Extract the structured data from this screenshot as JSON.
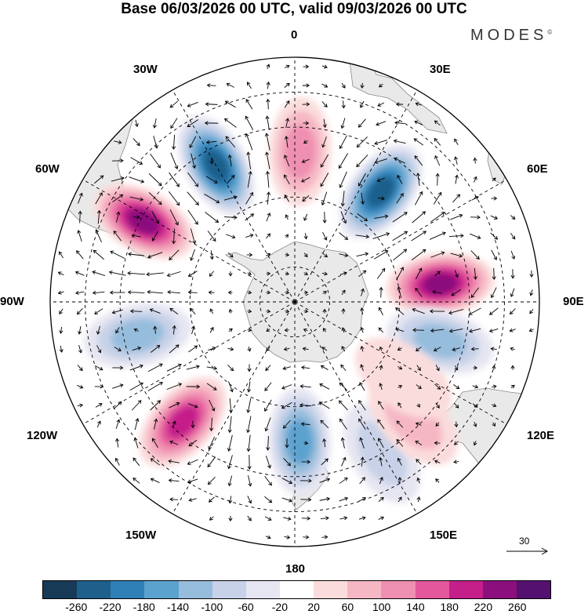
{
  "title": "Base 06/03/2026 00 UTC, valid 09/03/2026 00 UTC",
  "brand": "MODES",
  "brand_mark": "©",
  "longitude_labels": {
    "n0": "0",
    "n30e": "30E",
    "n60e": "60E",
    "n90e": "90E",
    "n120e": "120E",
    "n150e": "150E",
    "n180": "180",
    "n150w": "150W",
    "n120w": "120W",
    "n90w": "90W",
    "n60w": "60W",
    "n30w": "30W"
  },
  "reference_vector": {
    "label": "30"
  },
  "colorbar": {
    "colors": [
      "#173a57",
      "#1f5f8b",
      "#2f80b7",
      "#5ca2cf",
      "#97bddd",
      "#c7d2e8",
      "#e6e6f2",
      "#ffffff",
      "#fbdcdc",
      "#f6b7c5",
      "#ef8fb1",
      "#e4579c",
      "#c51f8a",
      "#8b0f7d",
      "#551170"
    ],
    "ticks": [
      "-260",
      "-220",
      "-180",
      "-140",
      "-100",
      "-60",
      "-20",
      "20",
      "60",
      "100",
      "140",
      "180",
      "220",
      "260"
    ]
  },
  "anomaly_centers": [
    {
      "lon": -30,
      "lat": -45,
      "value": -250
    },
    {
      "lon": 2,
      "lat": -47,
      "value": 130
    },
    {
      "lon": 38,
      "lat": -50,
      "value": -220
    },
    {
      "lon": 83,
      "lat": -48,
      "value": 230
    },
    {
      "lon": 105,
      "lat": -47,
      "value": -110
    },
    {
      "lon": -62,
      "lat": -41,
      "value": 240
    },
    {
      "lon": -102,
      "lat": -44,
      "value": -130
    },
    {
      "lon": -137,
      "lat": -43,
      "value": 180
    },
    {
      "lon": 178,
      "lat": -50,
      "value": -170
    },
    {
      "lon": 150,
      "lat": -40,
      "value": -60
    },
    {
      "lon": 135,
      "lat": -42,
      "value": 60
    },
    {
      "lon": 125,
      "lat": -52,
      "value": 50
    }
  ],
  "colors": {
    "land": "#e9e9e9",
    "coast": "#888888",
    "grid": "#000000"
  }
}
